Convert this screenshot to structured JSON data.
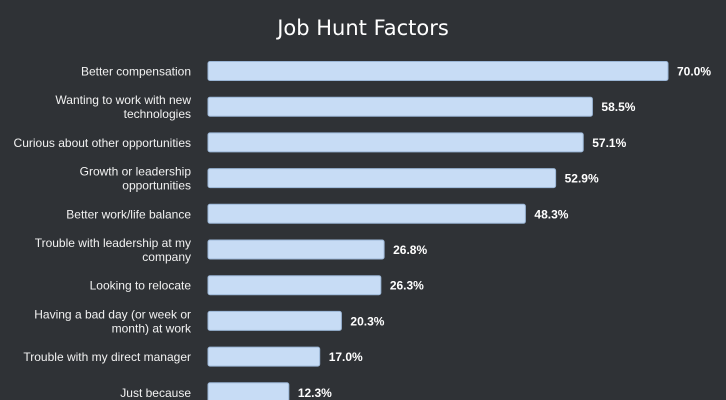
{
  "chart_data": {
    "type": "bar",
    "orientation": "horizontal",
    "title": "Job Hunt Factors",
    "categories": [
      "Better compensation",
      "Wanting to work with new technologies",
      "Curious about other opportunities",
      "Growth or leadership opportunities",
      "Better work/life balance",
      "Trouble with leadership at my company",
      "Looking to relocate",
      "Having a bad day (or week or month) at work",
      "Trouble with my direct manager",
      "Just because"
    ],
    "category_label_lines": [
      [
        "Better compensation"
      ],
      [
        "Wanting to work with new",
        "technologies"
      ],
      [
        "Curious about other opportunities"
      ],
      [
        "Growth or leadership",
        "opportunities"
      ],
      [
        "Better work/life balance"
      ],
      [
        "Trouble with leadership at my",
        "company"
      ],
      [
        "Looking to relocate"
      ],
      [
        "Having a bad day (or week or",
        "month) at work"
      ],
      [
        "Trouble with my direct manager"
      ],
      [
        "Just because"
      ]
    ],
    "values": [
      70.0,
      58.5,
      57.1,
      52.9,
      48.3,
      26.8,
      26.3,
      20.3,
      17.0,
      12.3
    ],
    "value_labels": [
      "70.0%",
      "58.5%",
      "57.1%",
      "52.9%",
      "48.3%",
      "26.8%",
      "26.3%",
      "20.3%",
      "17.0%",
      "12.3%"
    ],
    "xlim": [
      0,
      70
    ],
    "grid": false,
    "legend": "none",
    "colors": {
      "background": "#2f3236",
      "bar_fill": "#c7dcf5",
      "bar_stroke": "#9bb6d6",
      "label_text": "#f2f2f2",
      "value_text": "#ffffff"
    }
  }
}
